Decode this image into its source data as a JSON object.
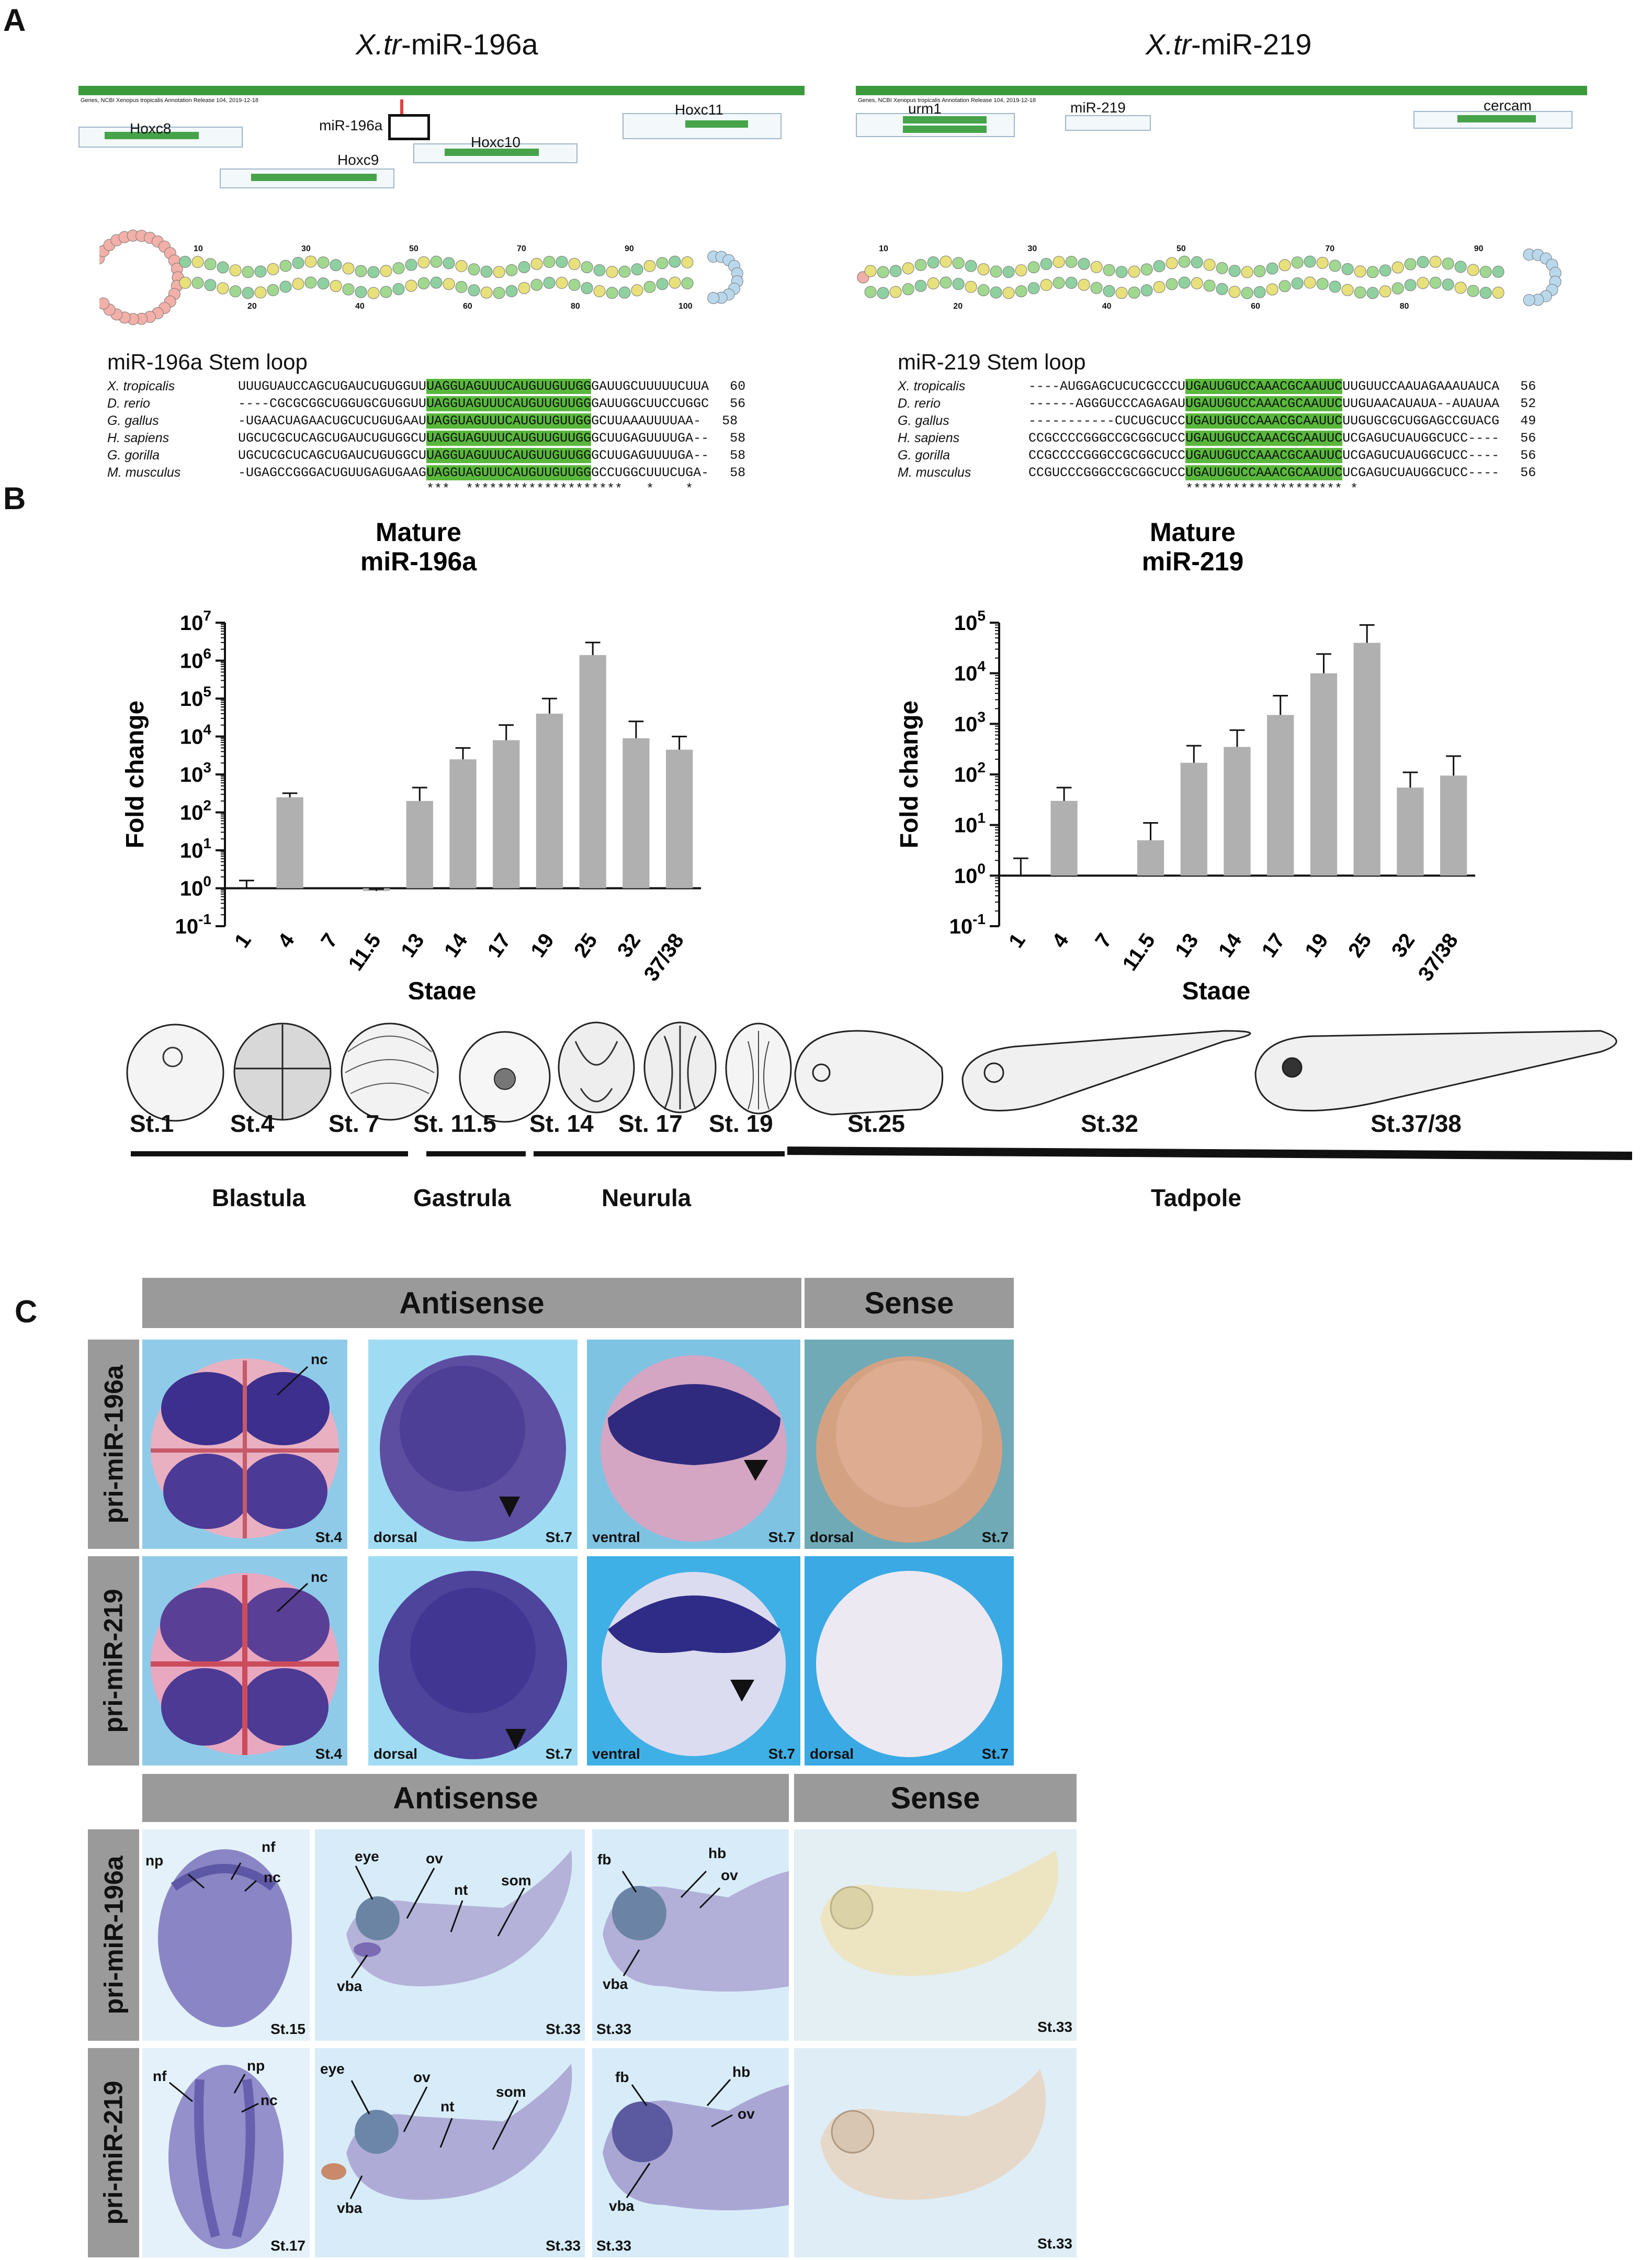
{
  "panels": {
    "A": "A",
    "B": "B",
    "C": "C"
  },
  "panelA": {
    "left": {
      "title_italic": "X.tr",
      "title_rest": "-miR-196a",
      "track_caption": "Genes, NCBI Xenopus tropicalis Annotation Release 104, 2019-12-18",
      "genes": {
        "hoxc8": "Hoxc8",
        "hoxc9": "Hoxc9",
        "hoxc10": "Hoxc10",
        "hoxc11": "Hoxc11",
        "mir": "miR-196a"
      },
      "stem_loop_title": "miR-196a Stem loop",
      "numbers": [
        "10",
        "20",
        "30",
        "40",
        "50",
        "60",
        "70",
        "80",
        "90",
        "100"
      ],
      "alignment": [
        {
          "species": "X. tropicalis",
          "pre": "UUUGUAUCCAGCUGAUCUGUGGUU",
          "mid": "UAGGUAGUUUCAUGUUGUUGG",
          "post": "GAUUGCUUUUUCUUA",
          "len": "60"
        },
        {
          "species": "D. rerio",
          "pre": "----CGCGCGGCUGGUGCGUGGUU",
          "mid": "UAGGUAGUUUCAUGUUGUUGG",
          "post": "GAUUGGCUUCCUGGC",
          "len": "56"
        },
        {
          "species": "G. gallus",
          "pre": "-UGAACUAGAACUGCUCUGUGAAU",
          "mid": "UAGGUAGUUUCAUGUUGUUGG",
          "post": "GCUUAAAUUUUAA-",
          "len": "58"
        },
        {
          "species": "H. sapiens",
          "pre": "UGCUCGCUCAGCUGAUCUGUGGCU",
          "mid": "UAGGUAGUUUCAUGUUGUUGG",
          "post": "GCUUGAGUUUUGA--",
          "len": "58"
        },
        {
          "species": "G. gorilla",
          "pre": "UGCUCGCUCAGCUGAUCUGUGGCU",
          "mid": "UAGGUAGUUUCAUGUUGUUGG",
          "post": "GCUUGAGUUUUGA--",
          "len": "58"
        },
        {
          "species": "M. musculus",
          "pre": "-UGAGCCGGGACUGUUGAGUGAAG",
          "mid": "UAGGUAGUUUCAUGUUGUUGG",
          "post": "GCCUGGCUUUCUGA-",
          "len": "58"
        }
      ],
      "conservation": "***  ********************   *    *"
    },
    "right": {
      "title_italic": "X.tr",
      "title_rest": "-miR-219",
      "track_caption": "Genes, NCBI Xenopus tropicalis Annotation Release 104, 2019-12-18",
      "genes": {
        "urm1": "urm1",
        "mir": "miR-219",
        "cercam": "cercam"
      },
      "stem_loop_title": "miR-219 Stem loop",
      "numbers": [
        "10",
        "20",
        "30",
        "40",
        "50",
        "60",
        "70",
        "80",
        "90"
      ],
      "alignment": [
        {
          "species": "X. tropicalis",
          "pre": "----AUGGAGCUCUCGCCCU",
          "mid": "UGAUUGUCCAAACGCAAUUC",
          "post": "UUGUUCCAAUAGAAAUAUCA",
          "len": "56"
        },
        {
          "species": "D. rerio",
          "pre": "------AGGGUCCCAGAGAU",
          "mid": "UGAUUGUCCAAACGCAAUUC",
          "post": "UUGUAACAUAUA--AUAUAA",
          "len": "52"
        },
        {
          "species": "G. gallus",
          "pre": "-----------CUCUGCUCC",
          "mid": "UGAUUGUCCAAACGCAAUUC",
          "post": "UUGUGCGCUGGAGCCGUACG",
          "len": "49"
        },
        {
          "species": "H. sapiens",
          "pre": "CCGCCCCGGGCCGCGGCUCC",
          "mid": "UGAUUGUCCAAACGCAAUUC",
          "post": "UCGAGUCUAUGGCUCC----",
          "len": "56"
        },
        {
          "species": "G. gorilla",
          "pre": "CCGCCCCGGGCCGCGGCUCC",
          "mid": "UGAUUGUCCAAACGCAAUUC",
          "post": "UCGAGUCUAUGGCUCC----",
          "len": "56"
        },
        {
          "species": "M. musculus",
          "pre": "CCGUCCCGGGCCGCGGCUCC",
          "mid": "UGAUUGUCCAAACGCAAUUC",
          "post": "UCGAGUCUAUGGCUCC----",
          "len": "56"
        }
      ],
      "conservation": "******************** *"
    }
  },
  "chart_data": [
    {
      "type": "bar",
      "title": "Mature\nmiR-196a",
      "title_lines": [
        "Mature",
        "miR-196a"
      ],
      "xlabel": "Stage",
      "ylabel": "Fold change",
      "yscale": "log",
      "ylim": [
        0.1,
        10000000
      ],
      "yticks": [
        "10^-1",
        "10^0",
        "10^1",
        "10^2",
        "10^3",
        "10^4",
        "10^5",
        "10^6",
        "10^7"
      ],
      "categories": [
        "1",
        "4",
        "7",
        "11.5",
        "13",
        "14",
        "17",
        "19",
        "25",
        "32",
        "37/38"
      ],
      "values": [
        1.0,
        250,
        1.0,
        0.85,
        200,
        2500,
        8000,
        40000,
        1400000,
        9000,
        4500
      ],
      "error_upper": [
        1.6,
        320,
        1.0,
        0.95,
        450,
        5000,
        20000,
        100000,
        3000000,
        25000,
        10000
      ],
      "bar_color": "#b0b0b0"
    },
    {
      "type": "bar",
      "title": "Mature\nmiR-219",
      "title_lines": [
        "Mature",
        "miR-219"
      ],
      "xlabel": "Stage",
      "ylabel": "Fold change",
      "yscale": "log",
      "ylim": [
        0.1,
        100000
      ],
      "yticks": [
        "10^-1",
        "10^0",
        "10^1",
        "10^2",
        "10^3",
        "10^4",
        "10^5"
      ],
      "categories": [
        "1",
        "4",
        "7",
        "11.5",
        "13",
        "14",
        "17",
        "19",
        "25",
        "32",
        "37/38"
      ],
      "values": [
        1.0,
        30,
        1.0,
        5,
        170,
        350,
        1500,
        10000,
        40000,
        55,
        95
      ],
      "error_upper": [
        2.2,
        55,
        1.0,
        11,
        370,
        750,
        3600,
        24000,
        90000,
        110,
        230
      ],
      "bar_color": "#b0b0b0"
    }
  ],
  "stages_strip": {
    "stages": [
      "St.1",
      "St.4",
      "St. 7",
      "St. 11.5",
      "St. 14",
      "St. 17",
      "St. 19",
      "St.25",
      "St.32",
      "St.37/38"
    ],
    "groups": [
      "Blastula",
      "Gastrula",
      "Neurula",
      "Tadpole"
    ]
  },
  "panelC": {
    "top": {
      "antisense": "Antisense",
      "sense": "Sense",
      "rows": [
        "pri-miR-196a",
        "pri-miR-219"
      ],
      "labels": {
        "nc": "nc",
        "dorsal": "dorsal",
        "ventral": "ventral",
        "st4": "St.4",
        "st7": "St.7"
      }
    },
    "bottom": {
      "antisense": "Antisense",
      "sense": "Sense",
      "rows": [
        "pri-miR-196a",
        "pri-miR-219"
      ],
      "labels": {
        "np": "np",
        "nf": "nf",
        "nc": "nc",
        "eye": "eye",
        "ov": "ov",
        "nt": "nt",
        "som": "som",
        "vba": "vba",
        "fb": "fb",
        "hb": "hb",
        "st15": "St.15",
        "st17": "St.17",
        "st33": "St.33"
      }
    }
  },
  "colors": {
    "accent_green": "#59b83c",
    "header_grey": "#9a9a9a",
    "stain_blue": "#3b2f8a",
    "bg_blue": "#8fd0ee"
  }
}
